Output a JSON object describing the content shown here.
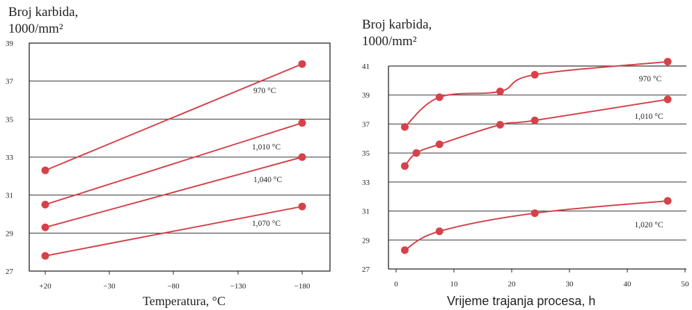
{
  "chart_data": [
    {
      "type": "line",
      "ylabel_line1": "Broj karbida,",
      "ylabel_line2": "1000/mm²",
      "xlabel": "Temperatura, °C",
      "x_ticks": [
        "+20",
        "−30",
        "−80",
        "−130",
        "−180"
      ],
      "y_ticks": [
        27,
        29,
        31,
        33,
        35,
        37,
        39
      ],
      "ylim": [
        27,
        39
      ],
      "grid": "horizontal",
      "series": [
        {
          "name": "970 °C",
          "x": [
            "+20",
            "−180"
          ],
          "values": [
            32.3,
            37.9
          ]
        },
        {
          "name": "1,010 °C",
          "x": [
            "+20",
            "−180"
          ],
          "values": [
            30.5,
            34.8
          ]
        },
        {
          "name": "1,040 °C",
          "x": [
            "+20",
            "−180"
          ],
          "values": [
            29.3,
            33.0
          ]
        },
        {
          "name": "1,070 °C",
          "x": [
            "+20",
            "−180"
          ],
          "values": [
            27.8,
            30.4
          ]
        }
      ],
      "color": "#d6424a"
    },
    {
      "type": "line",
      "ylabel_line1": "Broj karbida,",
      "ylabel_line2": "1000/mm²",
      "xlabel": "Vrijeme trajanja procesa, h",
      "x_ticks": [
        0,
        10,
        20,
        30,
        40,
        50
      ],
      "y_ticks": [
        27,
        29,
        31,
        33,
        35,
        37,
        39,
        41
      ],
      "xlim": [
        0,
        50
      ],
      "ylim": [
        27,
        41
      ],
      "grid": "horizontal",
      "series": [
        {
          "name": "970 °C",
          "x": [
            1.5,
            7.5,
            18,
            24,
            47
          ],
          "values": [
            36.8,
            38.85,
            39.25,
            40.4,
            41.3
          ]
        },
        {
          "name": "1,010 °C",
          "x": [
            1.5,
            3.5,
            7.5,
            18,
            24,
            47
          ],
          "values": [
            34.1,
            35.0,
            35.6,
            36.95,
            37.25,
            38.7
          ]
        },
        {
          "name": "1,020 °C",
          "x": [
            1.5,
            7.5,
            24,
            47
          ],
          "values": [
            28.3,
            29.6,
            30.85,
            31.7
          ]
        }
      ],
      "color": "#d6424a"
    }
  ]
}
